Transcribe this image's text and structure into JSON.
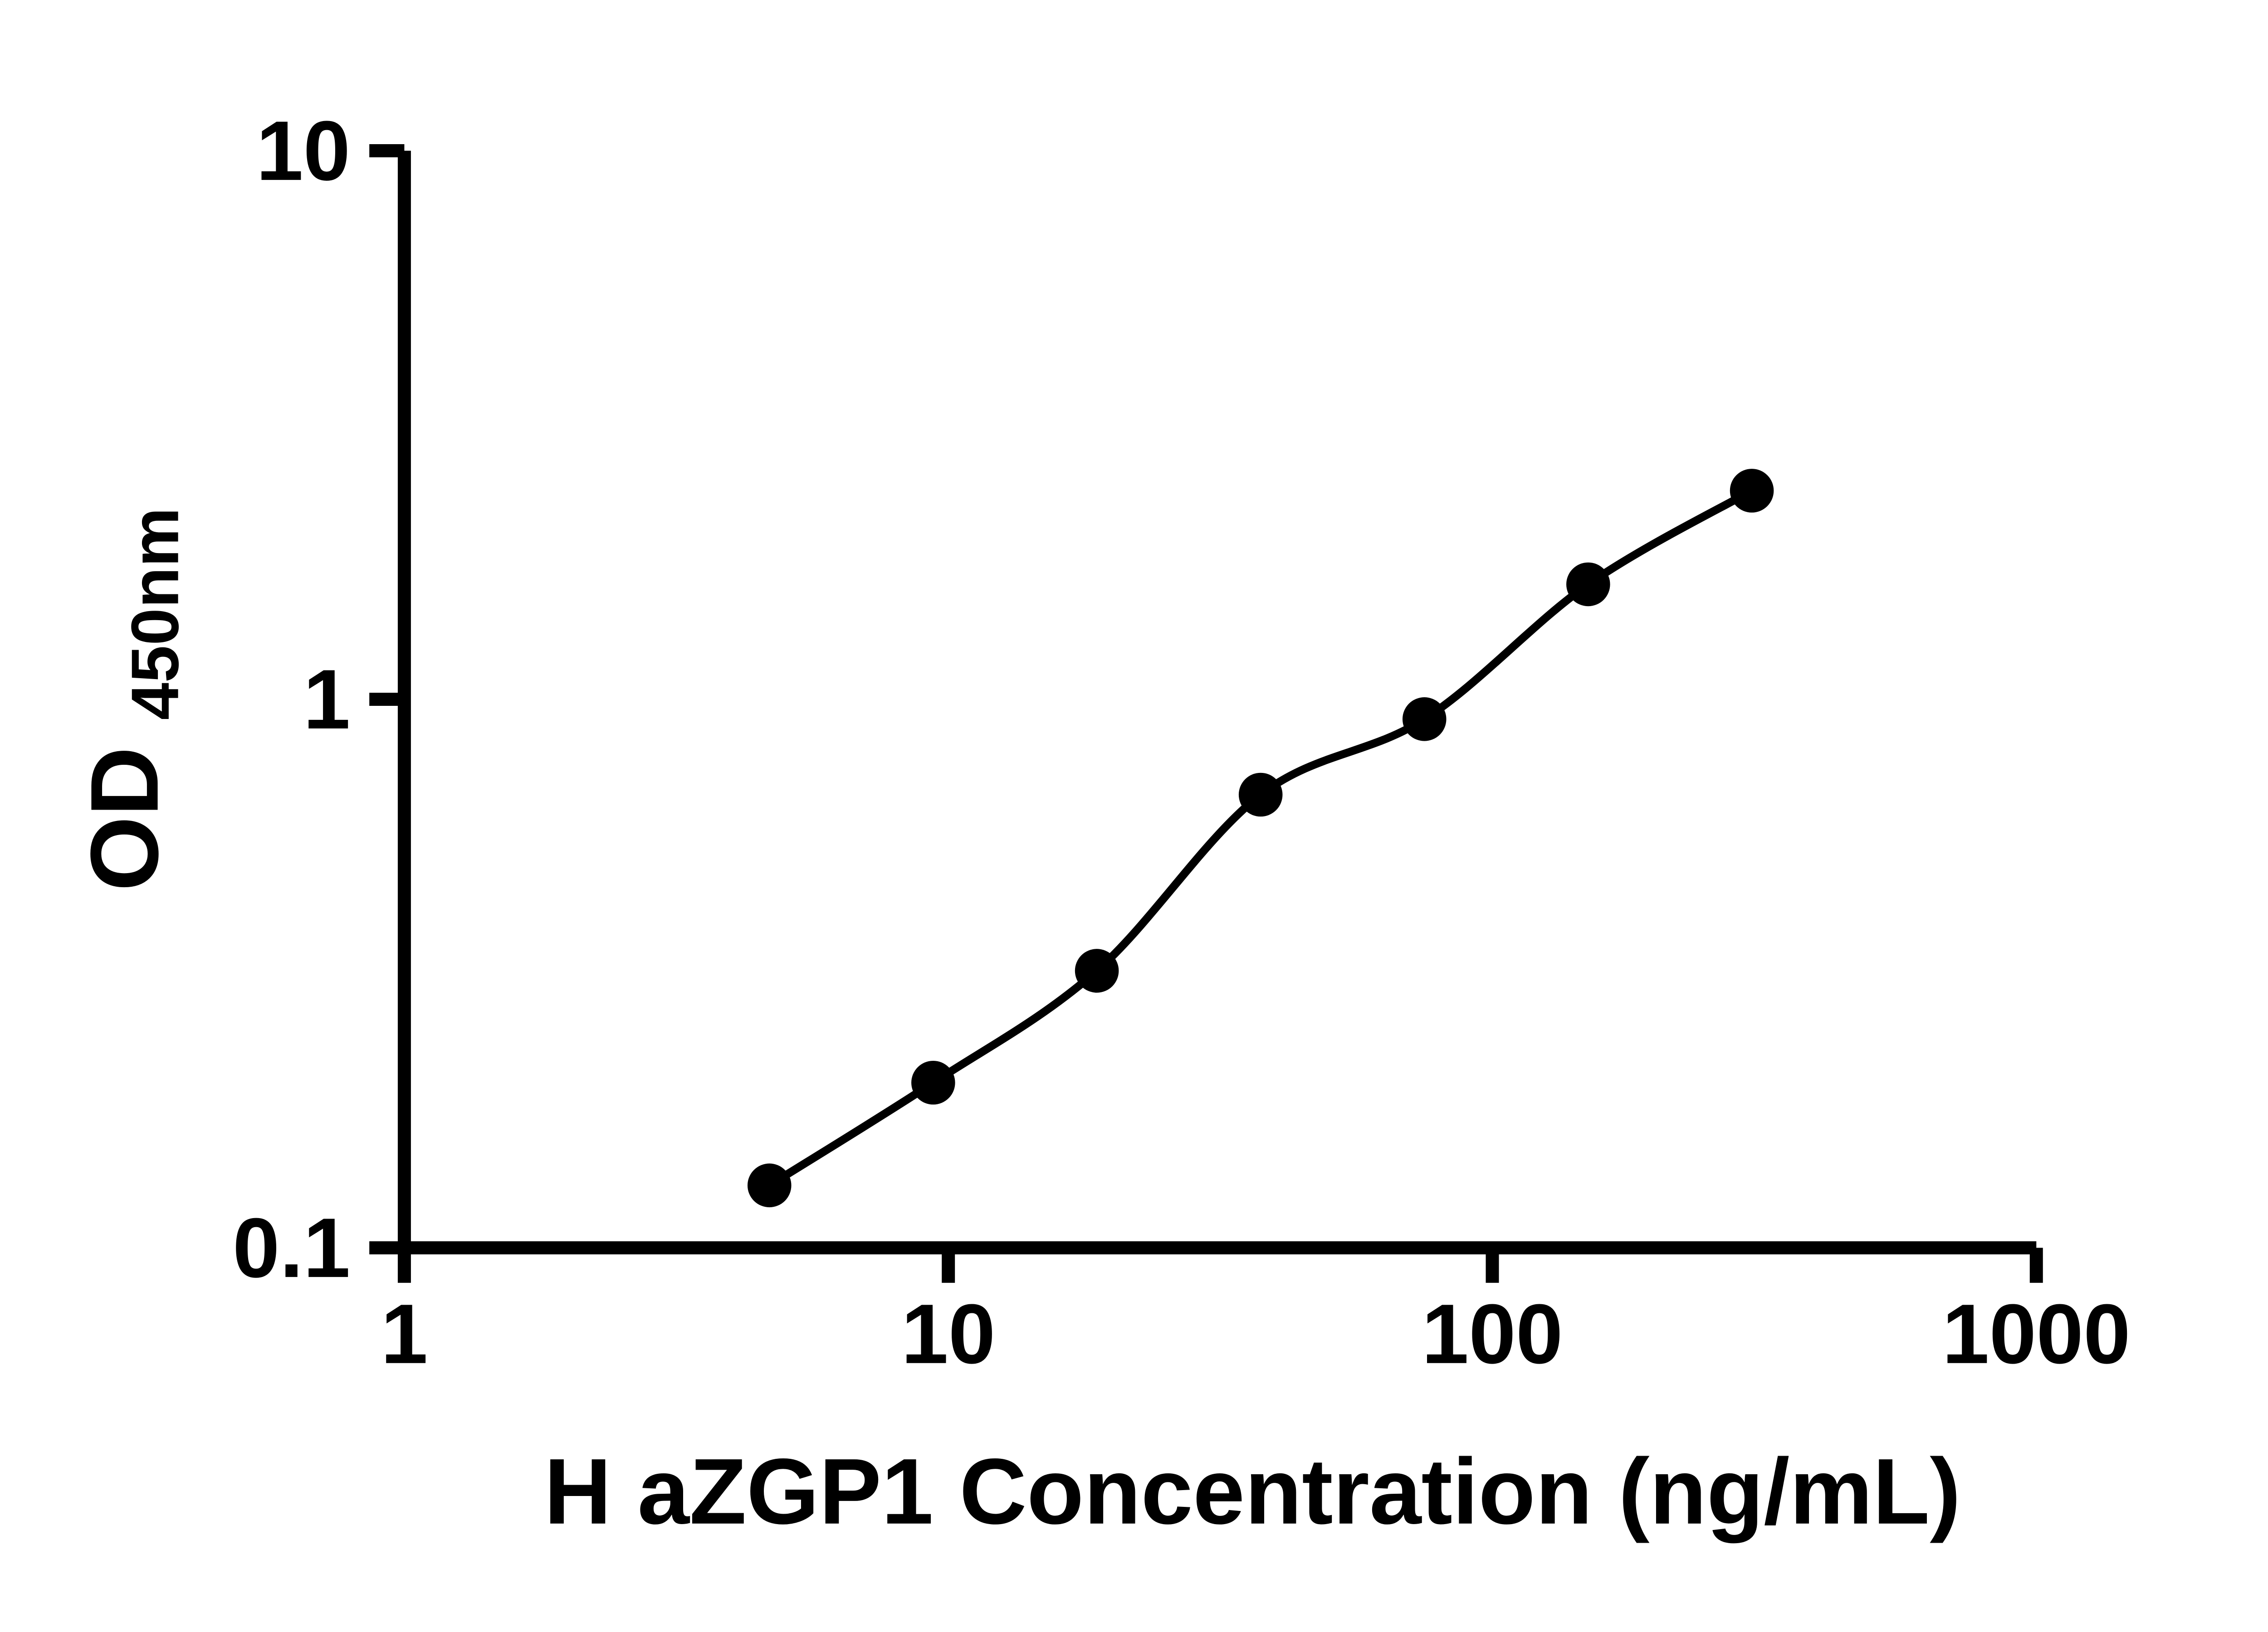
{
  "figure": {
    "background": "#ffffff",
    "foreground": "#000000"
  },
  "chart_data": {
    "type": "scatter",
    "title": "",
    "xlabel": "H aZGP1 Concentration (ng/mL)",
    "ylabel": "OD450nm",
    "ylabel_rich": {
      "main": "OD",
      "subscript": "450nm"
    },
    "x_scale": "log",
    "y_scale": "log",
    "xlim": [
      1,
      1000
    ],
    "ylim": [
      0.1,
      10
    ],
    "x_ticks": {
      "values": [
        1,
        10,
        100,
        1000
      ],
      "labels": [
        "1",
        "10",
        "100",
        "1000"
      ]
    },
    "y_ticks": {
      "values": [
        0.1,
        1,
        10
      ],
      "labels": [
        "0.1",
        "1",
        "10"
      ]
    },
    "grid": false,
    "legend": false,
    "marker": {
      "shape": "circle",
      "color": "#000000"
    },
    "line_color": "#000000",
    "curve": "smooth fit through points",
    "x": [
      4.69,
      9.38,
      18.75,
      37.5,
      75,
      150,
      300
    ],
    "y": [
      0.13,
      0.2,
      0.32,
      0.67,
      0.92,
      1.62,
      2.4
    ]
  }
}
